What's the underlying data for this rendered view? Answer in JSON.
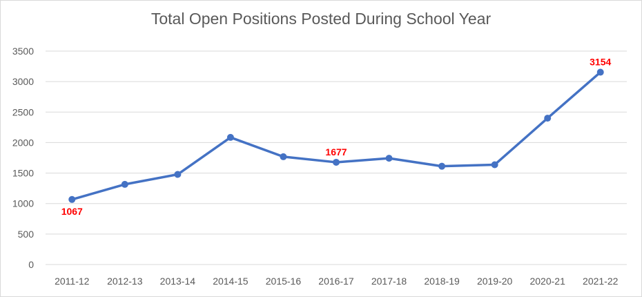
{
  "chart_data": {
    "type": "line",
    "title": "Total Open Positions Posted During School Year",
    "xlabel": "",
    "ylabel": "",
    "categories": [
      "2011-12",
      "2012-13",
      "2013-14",
      "2014-15",
      "2015-16",
      "2016-17",
      "2017-18",
      "2018-19",
      "2019-20",
      "2020-21",
      "2021-22"
    ],
    "series": [
      {
        "values": [
          1067,
          1315,
          1478,
          2085,
          1768,
          1677,
          1743,
          1612,
          1637,
          2400,
          3154
        ]
      }
    ],
    "ylim": [
      0,
      3500
    ],
    "yticks": [
      0,
      500,
      1000,
      1500,
      2000,
      2500,
      3000,
      3500
    ],
    "grid": true,
    "legend": "none",
    "data_labels": [
      {
        "index": 0,
        "text": "1067"
      },
      {
        "index": 5,
        "text": "1677"
      },
      {
        "index": 10,
        "text": "3154"
      }
    ],
    "colors": {
      "line": "#4472c4",
      "grid": "#d9d9d9",
      "label": "#ff0000",
      "text": "#595959"
    }
  }
}
